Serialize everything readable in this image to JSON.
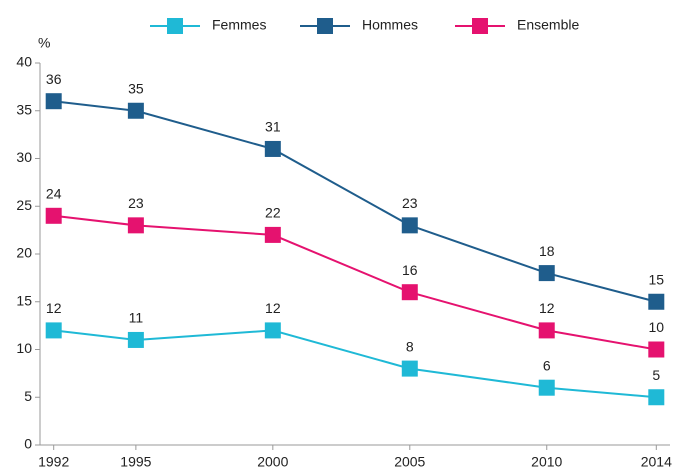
{
  "chart_data": {
    "type": "line",
    "y_label": "%",
    "x": [
      1992,
      1995,
      2000,
      2005,
      2010,
      2014
    ],
    "series": [
      {
        "name": "Femmes",
        "color": "#1fb9d6",
        "values": [
          12,
          11,
          12,
          8,
          6,
          5
        ]
      },
      {
        "name": "Hommes",
        "color": "#1f5d8c",
        "values": [
          36,
          35,
          31,
          23,
          18,
          15
        ]
      },
      {
        "name": "Ensemble",
        "color": "#e5126f",
        "values": [
          24,
          23,
          22,
          16,
          12,
          10
        ]
      }
    ],
    "xlim": [
      1991.5,
      2014.5
    ],
    "xticks": [
      1992,
      1995,
      2000,
      2005,
      2010,
      2014
    ],
    "ylim": [
      0,
      40
    ],
    "yticks": [
      0,
      5,
      10,
      15,
      20,
      25,
      30,
      35,
      40
    ],
    "grid": false,
    "legend": "top"
  }
}
